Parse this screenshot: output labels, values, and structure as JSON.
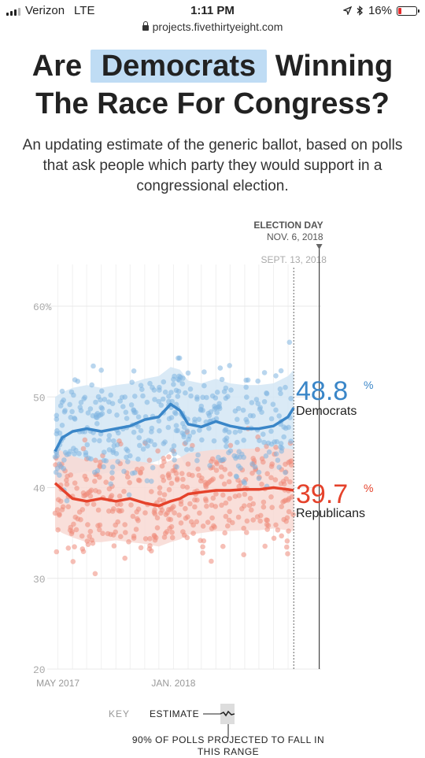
{
  "status_bar": {
    "carrier": "Verizon",
    "network": "LTE",
    "time": "1:11 PM",
    "battery_pct": "16%"
  },
  "browser": {
    "url": "projects.fivethirtyeight.com"
  },
  "headline": {
    "part1": "Are",
    "highlight": "Democrats",
    "part2": "Winning",
    "line2": "The Race For Congress?"
  },
  "dek": "An updating estimate of the generic ballot, based on polls that ask people which party they would support in a congressional election.",
  "colors": {
    "democrat": "#3a86c8",
    "democrat_dots": "#7fb5e0",
    "democrat_band": "#d4e6f5",
    "republican": "#e5422b",
    "republican_dots": "#ef8a7a",
    "republican_band": "#f8d9d3"
  },
  "chart_data": {
    "type": "line",
    "ylim": [
      20,
      62
    ],
    "yticks": [
      {
        "value": 60,
        "label": "60%"
      },
      {
        "value": 50,
        "label": "50"
      },
      {
        "value": 40,
        "label": "40"
      },
      {
        "value": 30,
        "label": "30"
      },
      {
        "value": 20,
        "label": "20"
      }
    ],
    "xticks": [
      {
        "date": "2017-05-01",
        "label": "MAY 2017"
      },
      {
        "date": "2018-01-01",
        "label": "JAN. 2018"
      }
    ],
    "date_range": [
      "2017-04-25",
      "2018-11-10"
    ],
    "today": {
      "date": "2018-09-13",
      "label": "SEPT. 13, 2018"
    },
    "election_day": {
      "date": "2018-11-06",
      "label": "ELECTION DAY",
      "sublabel": "NOV. 6, 2018"
    },
    "series": [
      {
        "name": "Democrats",
        "final_value": "48.8",
        "unit": "%",
        "x": [
          "2017-04-25",
          "2017-05-10",
          "2017-06-01",
          "2017-07-01",
          "2017-08-01",
          "2017-09-01",
          "2017-10-01",
          "2017-11-01",
          "2017-12-01",
          "2017-12-26",
          "2018-01-15",
          "2018-02-01",
          "2018-03-01",
          "2018-04-01",
          "2018-05-01",
          "2018-06-01",
          "2018-07-01",
          "2018-08-01",
          "2018-09-01",
          "2018-09-13"
        ],
        "y": [
          44.0,
          45.5,
          46.2,
          46.5,
          46.2,
          46.5,
          46.8,
          47.5,
          47.8,
          49.2,
          48.5,
          47.0,
          46.7,
          47.3,
          46.8,
          46.5,
          46.5,
          46.8,
          47.8,
          48.8
        ],
        "band_low": [
          40.5,
          41.0,
          41.5,
          41.8,
          41.5,
          41.8,
          42.0,
          42.5,
          43.0,
          44.0,
          43.5,
          42.0,
          41.8,
          42.2,
          41.8,
          41.5,
          41.5,
          41.8,
          42.8,
          43.5
        ],
        "band_high": [
          50.0,
          50.5,
          51.0,
          51.3,
          51.0,
          51.3,
          51.5,
          52.0,
          52.3,
          53.3,
          53.0,
          51.8,
          51.5,
          52.0,
          51.5,
          51.3,
          51.3,
          51.5,
          52.3,
          53.0
        ]
      },
      {
        "name": "Republicans",
        "final_value": "39.7",
        "unit": "%",
        "x": [
          "2017-04-25",
          "2017-05-10",
          "2017-06-01",
          "2017-07-01",
          "2017-08-01",
          "2017-09-01",
          "2017-10-01",
          "2017-11-01",
          "2017-12-01",
          "2017-12-26",
          "2018-01-15",
          "2018-02-01",
          "2018-03-01",
          "2018-04-01",
          "2018-05-01",
          "2018-06-01",
          "2018-07-01",
          "2018-08-01",
          "2018-09-01",
          "2018-09-13"
        ],
        "y": [
          40.5,
          39.8,
          38.8,
          38.5,
          38.8,
          38.5,
          38.8,
          38.3,
          38.0,
          38.5,
          38.8,
          39.3,
          39.5,
          39.7,
          39.7,
          39.8,
          39.8,
          40.0,
          39.8,
          39.7
        ],
        "band_low": [
          35.5,
          35.0,
          34.5,
          34.0,
          34.0,
          34.2,
          34.0,
          33.8,
          33.5,
          34.0,
          34.3,
          34.8,
          35.0,
          35.2,
          35.2,
          35.3,
          35.3,
          35.5,
          35.3,
          35.2
        ],
        "band_high": [
          44.5,
          44.0,
          43.5,
          43.0,
          43.0,
          43.2,
          43.0,
          42.8,
          42.5,
          43.0,
          43.3,
          43.8,
          44.0,
          44.2,
          44.2,
          44.3,
          44.3,
          44.5,
          44.3,
          44.2
        ]
      }
    ]
  },
  "key": {
    "label": "KEY",
    "estimate_label": "ESTIMATE",
    "range_label": "90% OF POLLS PROJECTED TO FALL IN THIS RANGE"
  }
}
